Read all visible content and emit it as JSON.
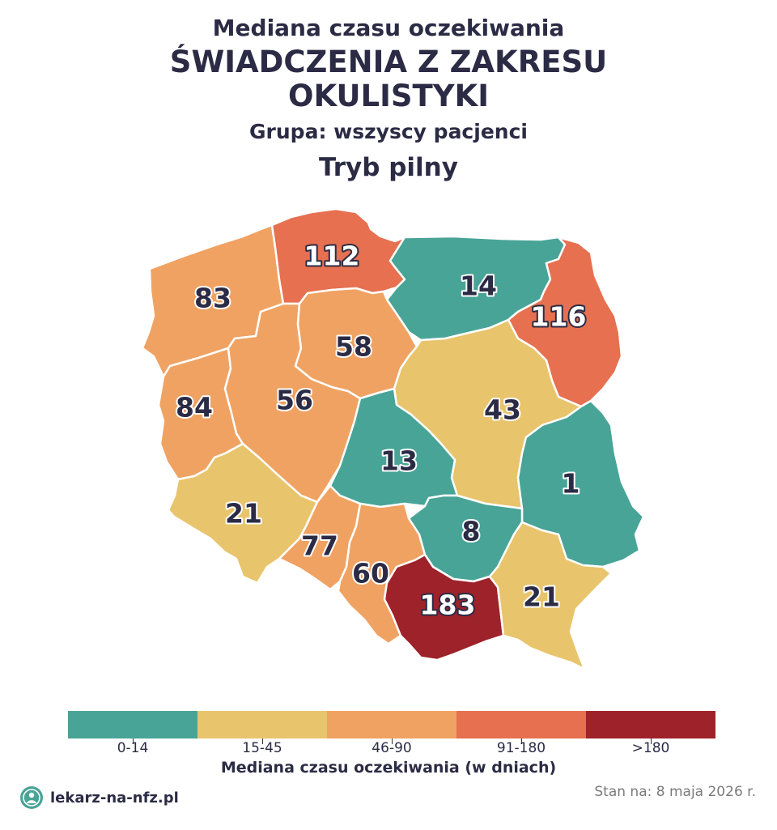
{
  "header": {
    "subtitle": "Mediana czasu oczekiwania",
    "title_line1": "ŚWIADCZENIA Z ZAKRESU",
    "title_line2": "OKULISTYKI",
    "group": "Grupa: wszyscy pacjenci",
    "mode": "Tryb pilny"
  },
  "map": {
    "regions": [
      {
        "id": "zachodniopomorskie",
        "value": "83",
        "color": "#f0a262"
      },
      {
        "id": "pomorskie",
        "value": "112",
        "color": "#e6704f"
      },
      {
        "id": "warminsko-mazurskie",
        "value": "14",
        "color": "#48a497"
      },
      {
        "id": "podlaskie",
        "value": "116",
        "color": "#e6704f"
      },
      {
        "id": "lubuskie",
        "value": "84",
        "color": "#f0a262"
      },
      {
        "id": "wielkopolskie",
        "value": "56",
        "color": "#f0a262"
      },
      {
        "id": "kujawsko-pomorskie",
        "value": "58",
        "color": "#f0a262"
      },
      {
        "id": "mazowieckie",
        "value": "43",
        "color": "#e8c46c"
      },
      {
        "id": "lodzkie",
        "value": "13",
        "color": "#48a497"
      },
      {
        "id": "lubelskie",
        "value": "1",
        "color": "#48a497"
      },
      {
        "id": "dolnoslaskie",
        "value": "21",
        "color": "#e8c46c"
      },
      {
        "id": "opolskie",
        "value": "77",
        "color": "#f0a262"
      },
      {
        "id": "slaskie",
        "value": "60",
        "color": "#f0a262"
      },
      {
        "id": "swietokrzyskie",
        "value": "8",
        "color": "#48a497"
      },
      {
        "id": "malopolskie",
        "value": "183",
        "color": "#9e2229"
      },
      {
        "id": "podkarpackie",
        "value": "21",
        "color": "#e8c46c"
      }
    ]
  },
  "legend": {
    "items": [
      {
        "label": "0-14",
        "color": "#48a497"
      },
      {
        "label": "15-45",
        "color": "#e8c46c"
      },
      {
        "label": "46-90",
        "color": "#f0a262"
      },
      {
        "label": "91-180",
        "color": "#e6704f"
      },
      {
        "label": ">180",
        "color": "#9e2229"
      }
    ],
    "title": "Mediana czasu oczekiwania (w dniach)"
  },
  "footer": {
    "brand": "lekarz-na-nfz.pl",
    "date": "Stan na: 8 maja 2026 r."
  }
}
